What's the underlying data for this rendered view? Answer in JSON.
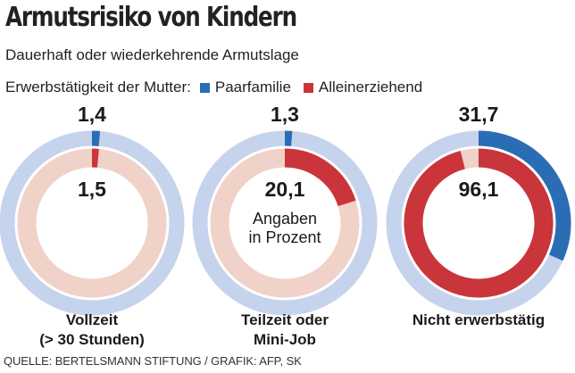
{
  "title": "Armutsrisiko von Kindern",
  "subtitle": "Dauerhaft oder wiederkehrende Armutslage",
  "legend": {
    "label": "Erwerbstätigkeit der Mutter:",
    "items": [
      {
        "name": "Paarfamilie",
        "color": "#2b6db5"
      },
      {
        "name": "Alleinerziehend",
        "color": "#c9353a"
      }
    ]
  },
  "colors": {
    "paarfamilie": "#2b6db5",
    "paarfamilie_track": "#c6d3ec",
    "alleinerziehend": "#c9353a",
    "alleinerziehend_track": "#f0d2c8"
  },
  "chart_data": {
    "type": "pie",
    "variant": "nested-donut",
    "title": "Armutsrisiko von Kindern",
    "subtitle": "Dauerhaft oder wiederkehrende Armutslage",
    "unit": "%",
    "note": "Angaben in Prozent",
    "categories": [
      "Vollzeit (> 30 Stunden)",
      "Teilzeit oder Mini-Job",
      "Nicht erwerbstätig"
    ],
    "series": [
      {
        "name": "Paarfamilie",
        "ring": "outer",
        "values": [
          1.4,
          1.3,
          31.7
        ],
        "labels": [
          "1,4",
          "1,3",
          "31,7"
        ]
      },
      {
        "name": "Alleinerziehend",
        "ring": "inner",
        "values": [
          1.5,
          20.1,
          96.1
        ],
        "labels": [
          "1,5",
          "20,1",
          "96,1"
        ]
      }
    ]
  },
  "charts": [
    {
      "category": "Vollzeit\n(> 30 Stunden)",
      "outer_label": "1,4",
      "inner_label": "1,5",
      "note": ""
    },
    {
      "category": "Teilzeit oder\nMini-Job",
      "outer_label": "1,3",
      "inner_label": "20,1",
      "note": "Angaben\nin Prozent"
    },
    {
      "category": "Nicht erwerbstätig",
      "outer_label": "31,7",
      "inner_label": "96,1",
      "note": ""
    }
  ],
  "source": "QUELLE: BERTELSMANN STIFTUNG / GRAFIK: AFP, SK"
}
